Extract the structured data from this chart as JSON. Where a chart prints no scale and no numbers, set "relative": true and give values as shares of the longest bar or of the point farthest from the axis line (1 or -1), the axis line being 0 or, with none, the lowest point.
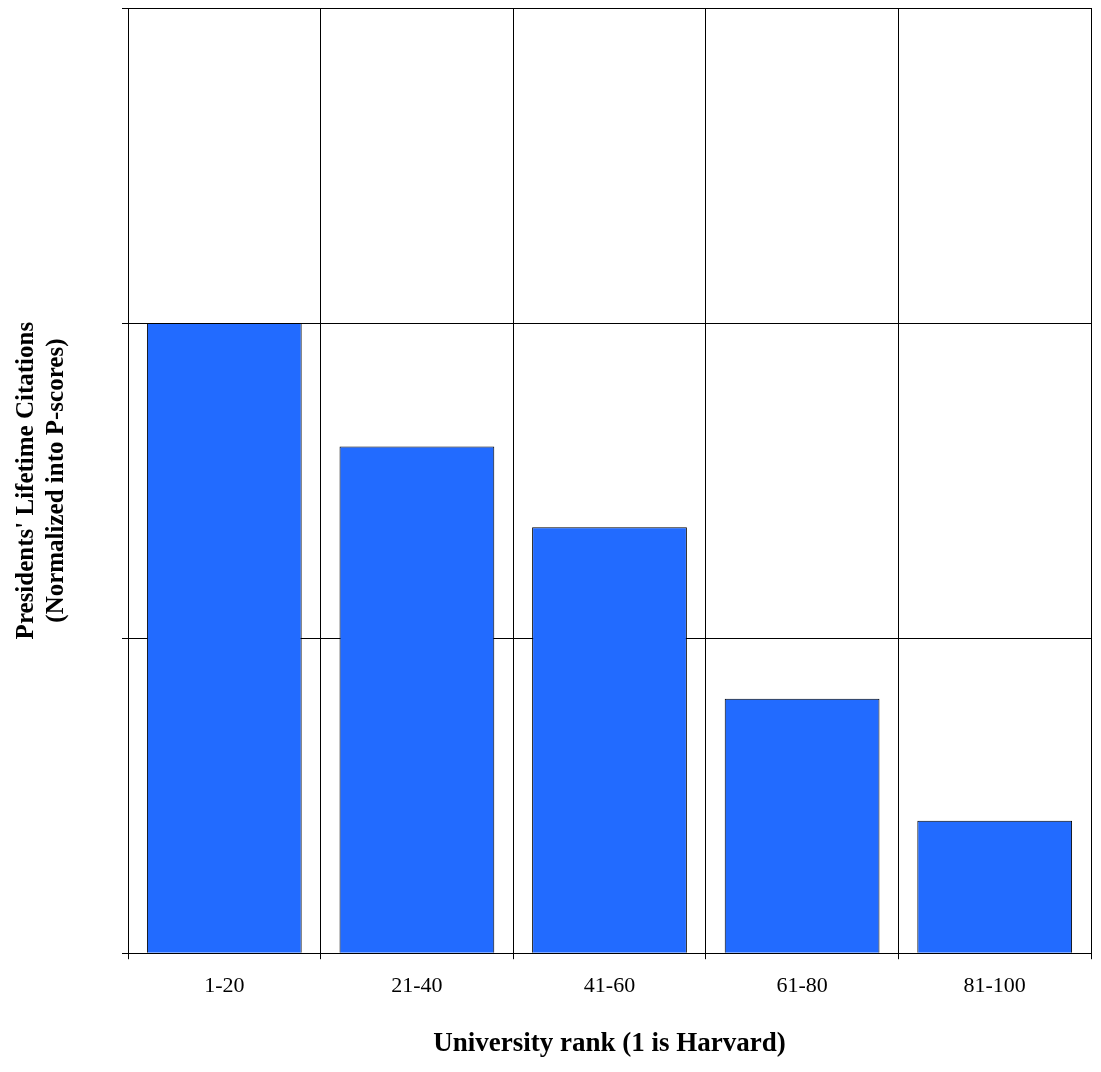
{
  "chart_data": {
    "type": "bar",
    "relative": true,
    "categories": [
      "1-20",
      "21-40",
      "41-60",
      "61-80",
      "81-100"
    ],
    "values": [
      1,
      0.804,
      0.676,
      0.404,
      0.21
    ],
    "color": "#226bff",
    "xlabel": "University rank (1 is Harvard)",
    "ylabel": "Presidents' Lifetime Citations\n(Normalized into P-scores)",
    "grid": true,
    "legend": false
  }
}
